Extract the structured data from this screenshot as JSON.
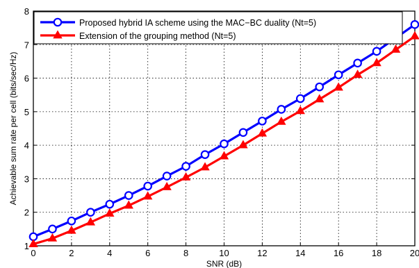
{
  "chart_data": {
    "type": "line",
    "title": "",
    "xlabel": "SNR (dB)",
    "ylabel": "Achievable sum rate per cell (bits/sec/Hz)",
    "xlim": [
      0,
      20
    ],
    "ylim": [
      1,
      8
    ],
    "xticks": [
      0,
      2,
      4,
      6,
      8,
      10,
      12,
      14,
      16,
      18,
      20
    ],
    "yticks": [
      1,
      2,
      3,
      4,
      5,
      6,
      7,
      8
    ],
    "grid": true,
    "legend_position": "top-left",
    "x": [
      0,
      1,
      2,
      3,
      4,
      5,
      6,
      7,
      8,
      9,
      10,
      11,
      12,
      13,
      14,
      15,
      16,
      17,
      18,
      19,
      20
    ],
    "series": [
      {
        "name": "Proposed hybrid IA scheme using the MAC−BC duality (Nt=5)",
        "color": "#0000ff",
        "marker": "circle",
        "values": [
          1.27,
          1.5,
          1.74,
          2.0,
          2.24,
          2.5,
          2.78,
          3.08,
          3.37,
          3.72,
          4.04,
          4.38,
          4.72,
          5.07,
          5.39,
          5.74,
          6.1,
          6.45,
          6.8,
          7.2,
          7.6
        ]
      },
      {
        "name": "Extension of the grouping method (Nt=5)",
        "color": "#ff0000",
        "marker": "triangle",
        "values": [
          1.05,
          1.22,
          1.45,
          1.7,
          1.96,
          2.2,
          2.47,
          2.75,
          3.04,
          3.34,
          3.67,
          4.0,
          4.35,
          4.7,
          5.02,
          5.37,
          5.72,
          6.1,
          6.45,
          6.85,
          7.25
        ]
      }
    ]
  }
}
